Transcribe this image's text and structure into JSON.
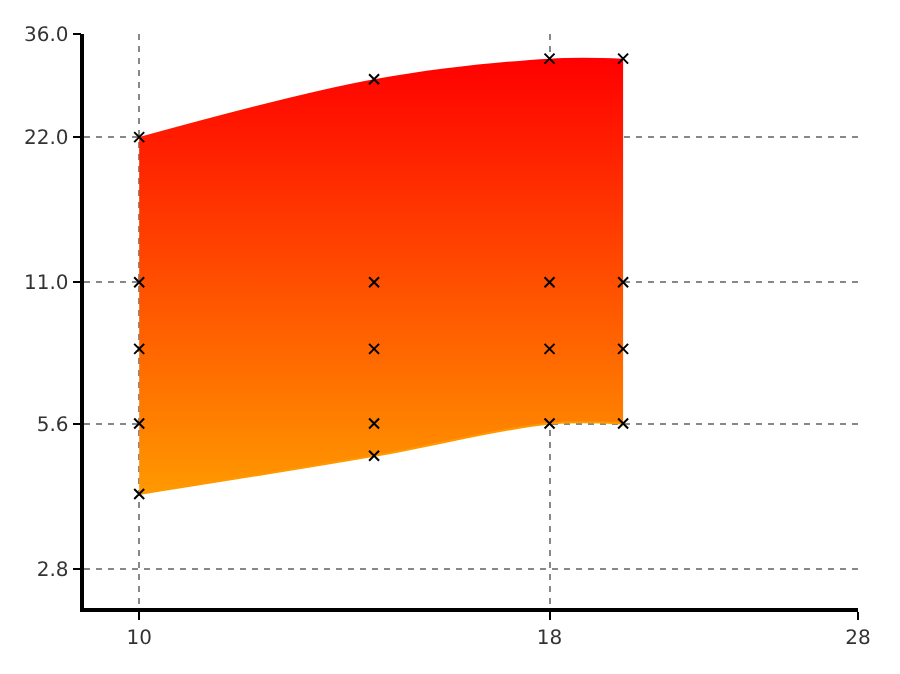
{
  "chart_data": {
    "type": "area",
    "log": "xy",
    "x": [
      10,
      14,
      18,
      20
    ],
    "series": [
      {
        "type": "line",
        "marker": "none",
        "color": "#ff9900",
        "values": [
          4,
          4.8,
          5.6,
          5.6
        ]
      },
      {
        "marker": "none",
        "color": "#ff0000",
        "values": [
          22,
          29,
          32,
          32
        ]
      },
      {
        "type": "scatter",
        "color": "#000000",
        "values": [
          22,
          29,
          32,
          32
        ]
      },
      {
        "type": "scatter",
        "color": "#000000",
        "values": [
          11,
          11,
          11,
          11
        ]
      },
      {
        "type": "scatter",
        "color": "#000000",
        "values": [
          8,
          8,
          8,
          8
        ]
      },
      {
        "type": "scatter",
        "color": "#000000",
        "values": [
          5.6,
          5.6,
          5.6,
          5.6
        ]
      },
      {
        "type": "scatter",
        "color": "#000000",
        "values": [
          4,
          4.8,
          null,
          null
        ]
      }
    ],
    "marker": "cross",
    "grid": true,
    "xlim": [
      9.24,
      28
    ],
    "xticks": [
      10,
      18,
      28
    ],
    "ylim": [
      2.32,
      36
    ],
    "yticks": [
      {
        "value": 2.8,
        "label": "2.8"
      },
      5.6,
      {
        "value": 11,
        "label": "11.0"
      },
      {
        "value": 22,
        "label": "22.0"
      },
      {
        "value": 36,
        "label": "36.0"
      }
    ]
  }
}
